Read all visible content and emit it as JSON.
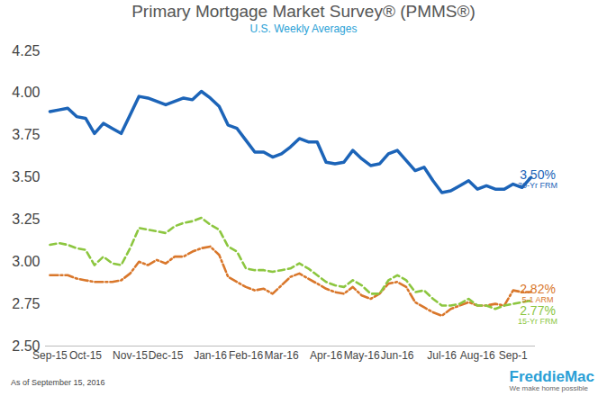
{
  "chart_data": {
    "type": "line",
    "title": "Primary Mortgage Market Survey® (PMMS®)",
    "subtitle": "U.S. Weekly Averages",
    "caption": "As of September 15, 2016",
    "brand": "FreddieMac",
    "tagline": "We make home possible",
    "grid": false,
    "x": [
      "Sep-15",
      null,
      null,
      null,
      "Oct-15",
      null,
      null,
      null,
      null,
      "Nov-15",
      null,
      null,
      null,
      "Dec-15",
      null,
      null,
      null,
      null,
      "Jan-16",
      null,
      null,
      null,
      "Feb-16",
      null,
      null,
      null,
      "Mar-16",
      null,
      null,
      null,
      null,
      "Apr-16",
      null,
      null,
      null,
      "May-16",
      null,
      null,
      null,
      "Jun-16",
      null,
      null,
      null,
      null,
      "Jul-16",
      null,
      null,
      null,
      "Aug-16",
      null,
      null,
      null,
      "Sep-1",
      null,
      null
    ],
    "ylim": [
      2.5,
      4.25
    ],
    "yticks": [
      {
        "value": 2.5,
        "label": "2.50"
      },
      {
        "value": 2.75,
        "label": "2.75"
      },
      {
        "value": 3,
        "label": "3.00"
      },
      {
        "value": 3.25,
        "label": "3.25"
      },
      {
        "value": 3.5,
        "label": "3.50"
      },
      {
        "value": 3.75,
        "label": "3.75"
      },
      {
        "value": 4,
        "label": "4.00"
      },
      {
        "value": 4.25,
        "label": "4.25"
      }
    ],
    "series": [
      {
        "name": "30-Yr FRM",
        "color": "#1c64b8",
        "line_style": "solid",
        "end_label": "3.50%",
        "values": [
          3.89,
          3.9,
          3.91,
          3.86,
          3.85,
          3.76,
          3.82,
          3.79,
          3.76,
          3.87,
          3.98,
          3.97,
          3.95,
          3.93,
          3.95,
          3.97,
          3.96,
          4.01,
          3.97,
          3.92,
          3.81,
          3.79,
          3.72,
          3.65,
          3.65,
          3.62,
          3.64,
          3.68,
          3.73,
          3.71,
          3.71,
          3.59,
          3.58,
          3.59,
          3.66,
          3.61,
          3.57,
          3.58,
          3.64,
          3.66,
          3.6,
          3.54,
          3.56,
          3.48,
          3.41,
          3.42,
          3.45,
          3.48,
          3.43,
          3.45,
          3.43,
          3.43,
          3.46,
          3.44,
          3.5
        ]
      },
      {
        "name": "5-1 ARM",
        "color": "#d9772b",
        "line_style": "dashdot",
        "end_label": "2.82%",
        "values": [
          2.92,
          2.92,
          2.92,
          2.9,
          2.89,
          2.88,
          2.88,
          2.88,
          2.89,
          2.93,
          3.0,
          2.98,
          3.01,
          2.99,
          3.03,
          3.03,
          3.06,
          3.08,
          3.09,
          3.04,
          2.91,
          2.88,
          2.85,
          2.83,
          2.84,
          2.81,
          2.86,
          2.91,
          2.93,
          2.9,
          2.87,
          2.84,
          2.82,
          2.81,
          2.85,
          2.8,
          2.78,
          2.81,
          2.87,
          2.88,
          2.85,
          2.76,
          2.73,
          2.7,
          2.68,
          2.72,
          2.74,
          2.76,
          2.74,
          2.74,
          2.75,
          2.74,
          2.83,
          2.82,
          2.82
        ]
      },
      {
        "name": "15-Yr FRM",
        "color": "#8cc63f",
        "line_style": "dashed",
        "end_label": "2.77%",
        "values": [
          3.1,
          3.11,
          3.1,
          3.08,
          3.07,
          2.98,
          3.03,
          2.99,
          2.98,
          3.08,
          3.2,
          3.19,
          3.18,
          3.17,
          3.21,
          3.23,
          3.24,
          3.26,
          3.22,
          3.19,
          3.09,
          3.06,
          2.96,
          2.95,
          2.95,
          2.94,
          2.95,
          2.96,
          2.99,
          2.96,
          2.92,
          2.88,
          2.86,
          2.85,
          2.89,
          2.86,
          2.81,
          2.81,
          2.89,
          2.92,
          2.89,
          2.82,
          2.83,
          2.78,
          2.74,
          2.74,
          2.75,
          2.78,
          2.74,
          2.74,
          2.72,
          2.74,
          2.75,
          2.76,
          2.77
        ]
      }
    ]
  }
}
